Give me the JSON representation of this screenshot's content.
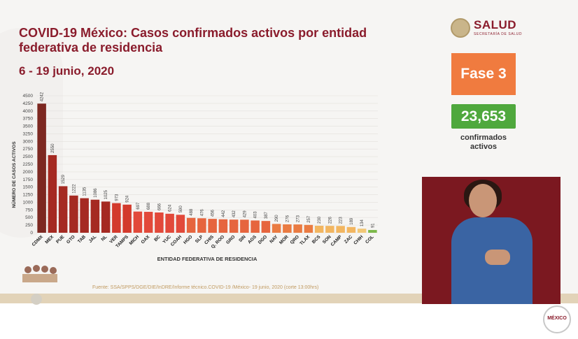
{
  "header": {
    "title": "COVID-19 México: Casos confirmados activos por entidad federativa de residencia",
    "subtitle": "6 - 19 junio, 2020"
  },
  "logo": {
    "name": "SALUD",
    "subtitle": "SECRETARÍA DE SALUD"
  },
  "fase": {
    "label": "Fase 3",
    "color": "#f07b3f"
  },
  "confirmados": {
    "value": "23,653",
    "label": "confirmados activos",
    "color": "#4fa83d"
  },
  "source": "Fuente: SSA/SPPS/DGE/DIE/InDRE/Informe técnico.COVID-19 /México- 19 junio, 2020 (corte 13:00hrs)",
  "badge": {
    "text": "MÉXICO"
  },
  "chart_data": {
    "type": "bar",
    "title": "",
    "xlabel": "ENTIDAD FEDERATIVA DE RESIDENCIA",
    "ylabel": "NÚMERO DE CASOS ACTIVOS",
    "ylim": [
      0,
      4500
    ],
    "yticks": [
      0,
      250,
      500,
      750,
      1000,
      1250,
      1500,
      1750,
      2000,
      2250,
      2500,
      2750,
      3000,
      3250,
      3500,
      3750,
      4000,
      4250,
      4500
    ],
    "ytick_labels": [
      "0",
      "250",
      "500",
      "750",
      "1000",
      "1250",
      "1500",
      "1750",
      "2000",
      "2250",
      "2500",
      "2750",
      "3000",
      "3250",
      "3500",
      "3750",
      "4000",
      "4250",
      "4500"
    ],
    "grid": true,
    "categories": [
      "CDMX",
      "MEX",
      "PUE",
      "GTO",
      "TAB",
      "JAL",
      "NL",
      "VER",
      "TAMPS",
      "MICH",
      "OAX",
      "BC",
      "YUC",
      "COAH",
      "HGO",
      "SLP",
      "CHIS",
      "Q. ROO",
      "GRO",
      "SIN",
      "AGS",
      "DGO",
      "NAY",
      "MOR",
      "QRO",
      "TLAX",
      "BCS",
      "SON",
      "CAMP",
      "ZAC",
      "CHIH",
      "COL"
    ],
    "values": [
      4242,
      2550,
      1529,
      1222,
      1135,
      1086,
      1025,
      973,
      924,
      697,
      688,
      666,
      624,
      590,
      488,
      476,
      456,
      442,
      432,
      429,
      403,
      387,
      290,
      276,
      273,
      257,
      230,
      226,
      223,
      189,
      134,
      91
    ],
    "data_labels": [
      "4242",
      "2550",
      "1529",
      "1222",
      "1135",
      "1086",
      "1025",
      "973",
      "924",
      "697",
      "688",
      "666",
      "624",
      "590",
      "488",
      "476",
      "456",
      "442",
      "432",
      "429",
      "403",
      "387",
      "290",
      "276",
      "273",
      "257",
      "230",
      "226",
      "223",
      "189",
      "134",
      "91"
    ],
    "colors": [
      "#7d2821",
      "#a52a22",
      "#a52a22",
      "#a52a22",
      "#a52a22",
      "#a52a22",
      "#a52a22",
      "#d33a2c",
      "#d33a2c",
      "#e2493a",
      "#e2493a",
      "#e2493a",
      "#e2493a",
      "#e2493a",
      "#e6653e",
      "#e6653e",
      "#e6653e",
      "#e6653e",
      "#e6653e",
      "#e6653e",
      "#e6653e",
      "#e6653e",
      "#ea7b42",
      "#ea7b42",
      "#ea7b42",
      "#ea7b42",
      "#f2b661",
      "#f2b661",
      "#f2b661",
      "#f2b661",
      "#f2c776",
      "#7cb84a"
    ]
  }
}
